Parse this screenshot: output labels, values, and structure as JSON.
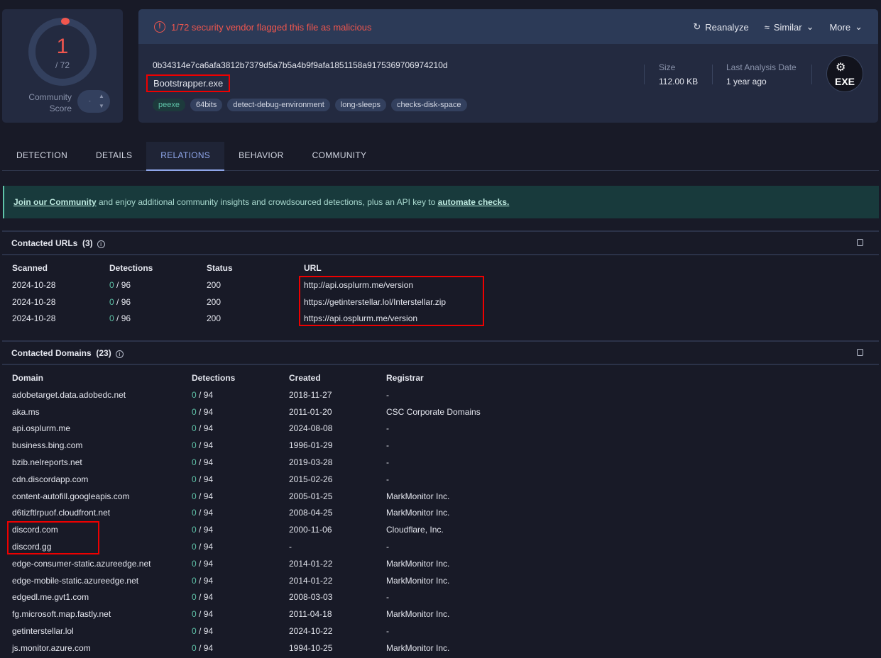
{
  "score": {
    "value": "1",
    "total": "/ 72",
    "community_label_1": "Community",
    "community_label_2": "Score",
    "community_value": "-"
  },
  "alert": "1/72 security vendor flagged this file as malicious",
  "actions": {
    "reanalyze": "Reanalyze",
    "similar": "Similar",
    "more": "More"
  },
  "file": {
    "hash": "0b34314e7ca6afa3812b7379d5a7b5a4b9f9afa1851158a9175369706974210d",
    "name": "Bootstrapper.exe",
    "tags": [
      "peexe",
      "64bits",
      "detect-debug-environment",
      "long-sleeps",
      "checks-disk-space"
    ],
    "size_label": "Size",
    "size": "112.00 KB",
    "date_label": "Last Analysis Date",
    "date": "1 year ago",
    "type_icon": "EXE"
  },
  "tabs": [
    "DETECTION",
    "DETAILS",
    "RELATIONS",
    "BEHAVIOR",
    "COMMUNITY"
  ],
  "banner": {
    "link1": "Join our Community",
    "text": " and enjoy additional community insights and crowdsourced detections, plus an API key to ",
    "link2": "automate checks."
  },
  "urls": {
    "title": "Contacted URLs",
    "count": "(3)",
    "headers": [
      "Scanned",
      "Detections",
      "Status",
      "URL"
    ],
    "rows": [
      [
        "2024-10-28",
        "0",
        "/ 96",
        "200",
        "http://api.osplurm.me/version"
      ],
      [
        "2024-10-28",
        "0",
        "/ 96",
        "200",
        "https://getinterstellar.lol/Interstellar.zip"
      ],
      [
        "2024-10-28",
        "0",
        "/ 96",
        "200",
        "https://api.osplurm.me/version"
      ]
    ]
  },
  "domains": {
    "title": "Contacted Domains",
    "count": "(23)",
    "headers": [
      "Domain",
      "Detections",
      "Created",
      "Registrar"
    ],
    "rows": [
      [
        "adobetarget.data.adobedc.net",
        "0",
        "/ 94",
        "2018-11-27",
        "-"
      ],
      [
        "aka.ms",
        "0",
        "/ 94",
        "2011-01-20",
        "CSC Corporate Domains"
      ],
      [
        "api.osplurm.me",
        "0",
        "/ 94",
        "2024-08-08",
        "-"
      ],
      [
        "business.bing.com",
        "0",
        "/ 94",
        "1996-01-29",
        "-"
      ],
      [
        "bzib.nelreports.net",
        "0",
        "/ 94",
        "2019-03-28",
        "-"
      ],
      [
        "cdn.discordapp.com",
        "0",
        "/ 94",
        "2015-02-26",
        "-"
      ],
      [
        "content-autofill.googleapis.com",
        "0",
        "/ 94",
        "2005-01-25",
        "MarkMonitor Inc."
      ],
      [
        "d6tizftlrpuof.cloudfront.net",
        "0",
        "/ 94",
        "2008-04-25",
        "MarkMonitor Inc."
      ],
      [
        "discord.com",
        "0",
        "/ 94",
        "2000-11-06",
        "Cloudflare, Inc."
      ],
      [
        "discord.gg",
        "0",
        "/ 94",
        "-",
        "-"
      ],
      [
        "edge-consumer-static.azureedge.net",
        "0",
        "/ 94",
        "2014-01-22",
        "MarkMonitor Inc."
      ],
      [
        "edge-mobile-static.azureedge.net",
        "0",
        "/ 94",
        "2014-01-22",
        "MarkMonitor Inc."
      ],
      [
        "edgedl.me.gvt1.com",
        "0",
        "/ 94",
        "2008-03-03",
        "-"
      ],
      [
        "fg.microsoft.map.fastly.net",
        "0",
        "/ 94",
        "2011-04-18",
        "MarkMonitor Inc."
      ],
      [
        "getinterstellar.lol",
        "0",
        "/ 94",
        "2024-10-22",
        "-"
      ],
      [
        "js.monitor.azure.com",
        "0",
        "/ 94",
        "1994-10-25",
        "MarkMonitor Inc."
      ]
    ]
  },
  "colors": {
    "malicious": "#f0564e",
    "clean": "#5fc4a9",
    "accent": "#8fa6ea",
    "highlight": "#ee0000"
  }
}
